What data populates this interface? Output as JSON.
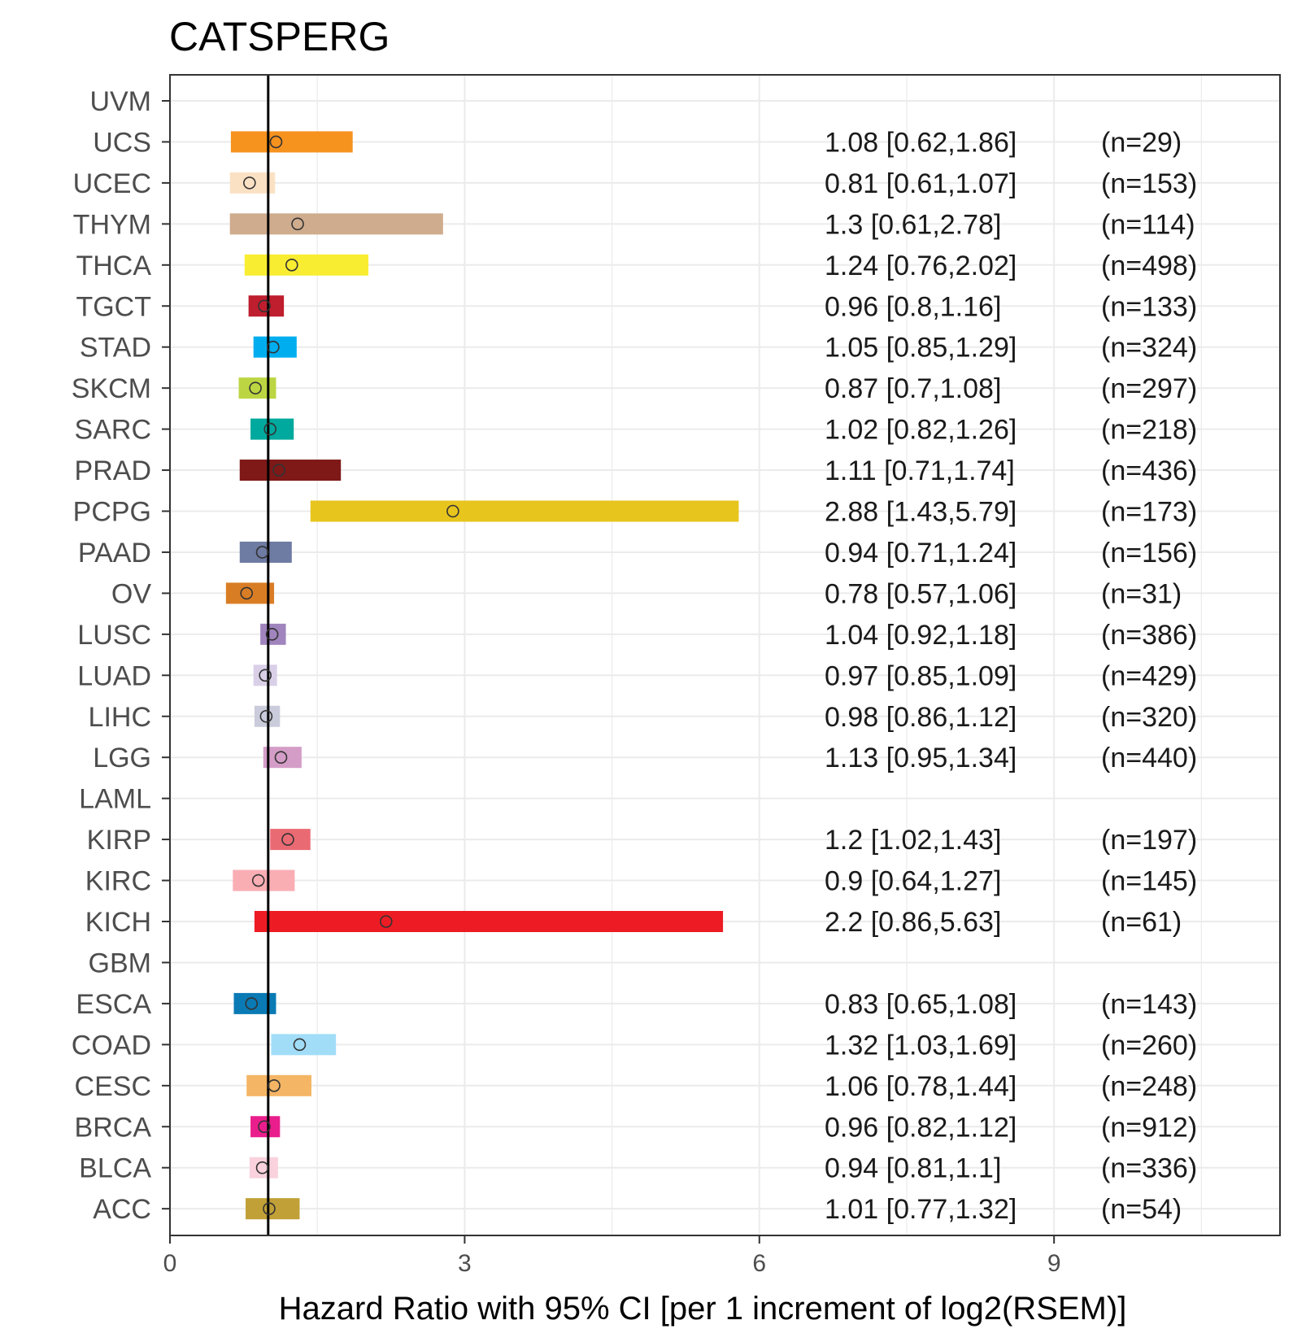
{
  "chart_data": {
    "type": "forest",
    "title": "CATSPERG",
    "xlabel": "Hazard Ratio with 95% CI [per 1 increment of log2(RSEM)]",
    "ylabel": "",
    "xlim": [
      0,
      11.3
    ],
    "xticks": [
      0,
      3,
      6,
      9
    ],
    "reference_line": 1,
    "grid": true,
    "rows": [
      {
        "label": "UVM",
        "hr": null,
        "lo": null,
        "hi": null,
        "text": "",
        "n": "",
        "color": "#ffffff"
      },
      {
        "label": "UCS",
        "hr": 1.08,
        "lo": 0.62,
        "hi": 1.86,
        "text": "1.08 [0.62,1.86]",
        "n": "(n=29)",
        "color": "#F6921E"
      },
      {
        "label": "UCEC",
        "hr": 0.81,
        "lo": 0.61,
        "hi": 1.07,
        "text": "0.81 [0.61,1.07]",
        "n": "(n=153)",
        "color": "#FBE1C4"
      },
      {
        "label": "THYM",
        "hr": 1.3,
        "lo": 0.61,
        "hi": 2.78,
        "text": "1.3 [0.61,2.78]",
        "n": "(n=114)",
        "color": "#CFAC8E"
      },
      {
        "label": "THCA",
        "hr": 1.24,
        "lo": 0.76,
        "hi": 2.02,
        "text": "1.24 [0.76,2.02]",
        "n": "(n=498)",
        "color": "#F9ED32"
      },
      {
        "label": "TGCT",
        "hr": 0.96,
        "lo": 0.8,
        "hi": 1.16,
        "text": "0.96 [0.8,1.16]",
        "n": "(n=133)",
        "color": "#BE1E2D"
      },
      {
        "label": "STAD",
        "hr": 1.05,
        "lo": 0.85,
        "hi": 1.29,
        "text": "1.05 [0.85,1.29]",
        "n": "(n=324)",
        "color": "#00AEEF"
      },
      {
        "label": "SKCM",
        "hr": 0.87,
        "lo": 0.7,
        "hi": 1.08,
        "text": "0.87 [0.7,1.08]",
        "n": "(n=297)",
        "color": "#BBD642"
      },
      {
        "label": "SARC",
        "hr": 1.02,
        "lo": 0.82,
        "hi": 1.26,
        "text": "1.02 [0.82,1.26]",
        "n": "(n=218)",
        "color": "#00A99D"
      },
      {
        "label": "PRAD",
        "hr": 1.11,
        "lo": 0.71,
        "hi": 1.74,
        "text": "1.11 [0.71,1.74]",
        "n": "(n=436)",
        "color": "#7E1918"
      },
      {
        "label": "PCPG",
        "hr": 2.88,
        "lo": 1.43,
        "hi": 5.79,
        "text": "2.88 [1.43,5.79]",
        "n": "(n=173)",
        "color": "#E8C51D"
      },
      {
        "label": "PAAD",
        "hr": 0.94,
        "lo": 0.71,
        "hi": 1.24,
        "text": "0.94 [0.71,1.24]",
        "n": "(n=156)",
        "color": "#6E7BA2"
      },
      {
        "label": "OV",
        "hr": 0.78,
        "lo": 0.57,
        "hi": 1.06,
        "text": "0.78 [0.57,1.06]",
        "n": "(n=31)",
        "color": "#D97D25"
      },
      {
        "label": "LUSC",
        "hr": 1.04,
        "lo": 0.92,
        "hi": 1.18,
        "text": "1.04 [0.92,1.18]",
        "n": "(n=386)",
        "color": "#A084BD"
      },
      {
        "label": "LUAD",
        "hr": 0.97,
        "lo": 0.85,
        "hi": 1.09,
        "text": "0.97 [0.85,1.09]",
        "n": "(n=429)",
        "color": "#D9D0E8"
      },
      {
        "label": "LIHC",
        "hr": 0.98,
        "lo": 0.86,
        "hi": 1.12,
        "text": "0.98 [0.86,1.12]",
        "n": "(n=320)",
        "color": "#CACCDB"
      },
      {
        "label": "LGG",
        "hr": 1.13,
        "lo": 0.95,
        "hi": 1.34,
        "text": "1.13 [0.95,1.34]",
        "n": "(n=440)",
        "color": "#D49DC7"
      },
      {
        "label": "LAML",
        "hr": null,
        "lo": null,
        "hi": null,
        "text": "",
        "n": "",
        "color": "#ffffff"
      },
      {
        "label": "KIRP",
        "hr": 1.2,
        "lo": 1.02,
        "hi": 1.43,
        "text": "1.2 [1.02,1.43]",
        "n": "(n=197)",
        "color": "#EA6A73"
      },
      {
        "label": "KIRC",
        "hr": 0.9,
        "lo": 0.64,
        "hi": 1.27,
        "text": "0.9 [0.64,1.27]",
        "n": "(n=145)",
        "color": "#F9AEB4"
      },
      {
        "label": "KICH",
        "hr": 2.2,
        "lo": 0.86,
        "hi": 5.63,
        "text": "2.2 [0.86,5.63]",
        "n": "(n=61)",
        "color": "#ED1C24"
      },
      {
        "label": "GBM",
        "hr": null,
        "lo": null,
        "hi": null,
        "text": "",
        "n": "",
        "color": "#ffffff"
      },
      {
        "label": "ESCA",
        "hr": 0.83,
        "lo": 0.65,
        "hi": 1.08,
        "text": "0.83 [0.65,1.08]",
        "n": "(n=143)",
        "color": "#0A7AB5"
      },
      {
        "label": "COAD",
        "hr": 1.32,
        "lo": 1.03,
        "hi": 1.69,
        "text": "1.32 [1.03,1.69]",
        "n": "(n=260)",
        "color": "#A2DDF8"
      },
      {
        "label": "CESC",
        "hr": 1.06,
        "lo": 0.78,
        "hi": 1.44,
        "text": "1.06 [0.78,1.44]",
        "n": "(n=248)",
        "color": "#F4B565"
      },
      {
        "label": "BRCA",
        "hr": 0.96,
        "lo": 0.82,
        "hi": 1.12,
        "text": "0.96 [0.82,1.12]",
        "n": "(n=912)",
        "color": "#E91E8C"
      },
      {
        "label": "BLCA",
        "hr": 0.94,
        "lo": 0.81,
        "hi": 1.1,
        "text": "0.94 [0.81,1.1]",
        "n": "(n=336)",
        "color": "#F9D2DD"
      },
      {
        "label": "ACC",
        "hr": 1.01,
        "lo": 0.77,
        "hi": 1.32,
        "text": "1.01 [0.77,1.32]",
        "n": "(n=54)",
        "color": "#C1A037"
      }
    ]
  }
}
